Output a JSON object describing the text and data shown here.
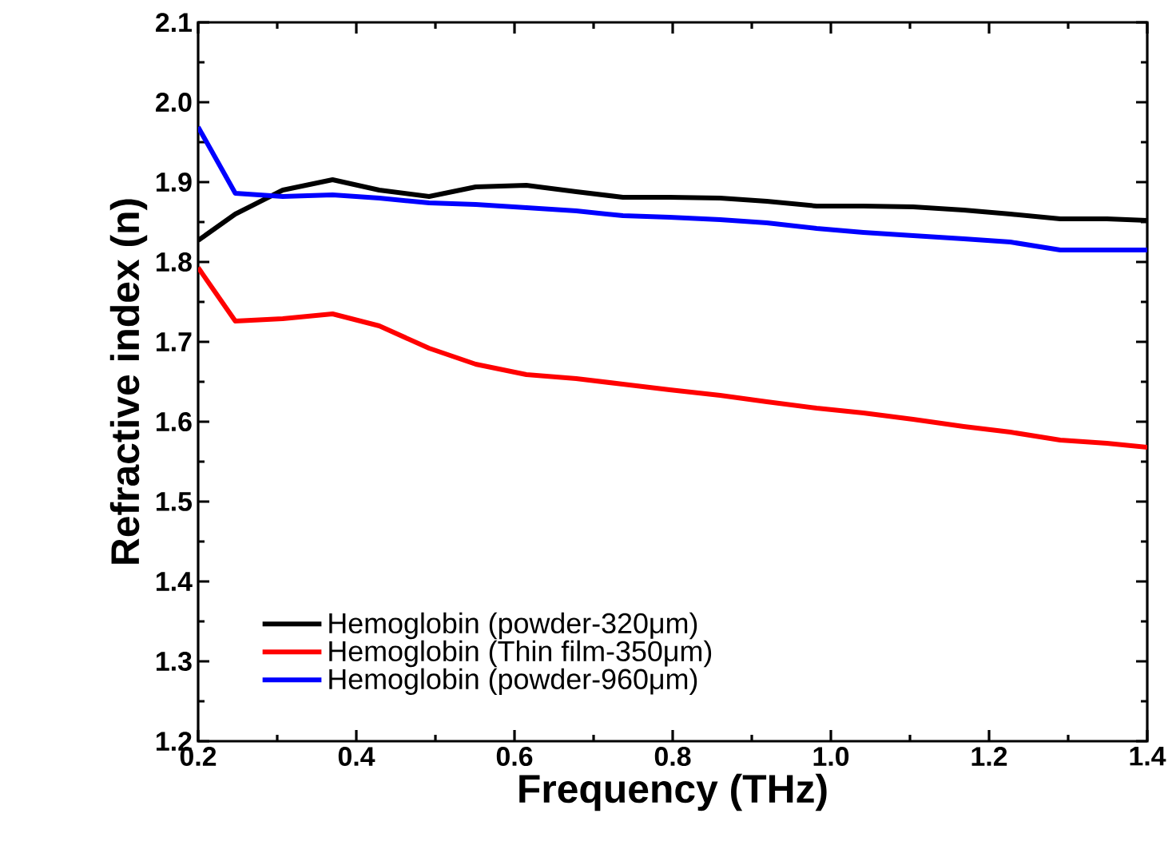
{
  "chart_data": {
    "type": "line",
    "xlabel": "Frequency (THz)",
    "ylabel": "Refractive index (n)",
    "x": [
      0.2,
      0.247,
      0.307,
      0.37,
      0.429,
      0.492,
      0.551,
      0.615,
      0.678,
      0.737,
      0.796,
      0.86,
      0.919,
      0.982,
      1.041,
      1.104,
      1.168,
      1.227,
      1.29,
      1.349,
      1.4
    ],
    "series": [
      {
        "name": "Hemoglobin (powder-320μm)",
        "color": "#000000",
        "values": [
          1.827,
          1.86,
          1.89,
          1.903,
          1.89,
          1.882,
          1.894,
          1.896,
          1.888,
          1.881,
          1.881,
          1.88,
          1.876,
          1.87,
          1.87,
          1.869,
          1.865,
          1.86,
          1.854,
          1.854,
          1.852
        ]
      },
      {
        "name": "Hemoglobin (Thin film-350μm)",
        "color": "#ff0000",
        "values": [
          1.793,
          1.726,
          1.729,
          1.735,
          1.72,
          1.692,
          1.672,
          1.659,
          1.654,
          1.647,
          1.64,
          1.633,
          1.625,
          1.617,
          1.611,
          1.603,
          1.594,
          1.587,
          1.577,
          1.573,
          1.568
        ]
      },
      {
        "name": "Hemoglobin (powder-960μm)",
        "color": "#0000ff",
        "values": [
          1.969,
          1.886,
          1.882,
          1.884,
          1.88,
          1.874,
          1.872,
          1.868,
          1.864,
          1.858,
          1.856,
          1.853,
          1.849,
          1.842,
          1.837,
          1.833,
          1.829,
          1.825,
          1.815,
          1.815,
          1.815
        ]
      }
    ],
    "xlim": [
      0.2,
      1.4
    ],
    "xticks": [
      0.2,
      0.4,
      0.6,
      0.8,
      {
        "value": 1.0,
        "label": "1.0"
      },
      1.2,
      1.4
    ],
    "ylim": [
      1.2,
      2.1
    ],
    "yticks": [
      1.2,
      1.3,
      1.4,
      1.5,
      1.6,
      1.7,
      1.8,
      1.9,
      {
        "value": 2.0,
        "label": "2.0"
      },
      2.1
    ],
    "legend": "bottom left",
    "grid": false,
    "marker": "none",
    "line_style": "solid"
  }
}
